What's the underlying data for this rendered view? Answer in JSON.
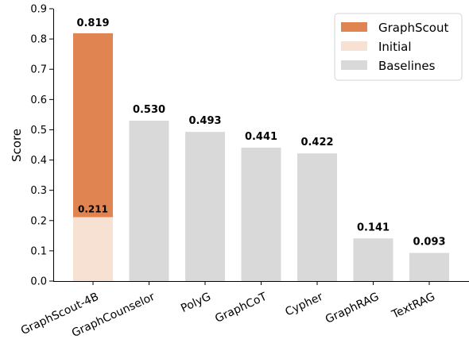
{
  "chart_data": {
    "type": "bar",
    "title": "",
    "xlabel": "",
    "ylabel": "Score",
    "ylim": [
      0,
      0.9
    ],
    "yticks": [
      "0.0",
      "0.1",
      "0.2",
      "0.3",
      "0.4",
      "0.5",
      "0.6",
      "0.7",
      "0.8",
      "0.9"
    ],
    "categories": [
      "GraphScout-4B",
      "GraphCounselor",
      "PolyG",
      "GraphCoT",
      "Cypher",
      "GraphRAG",
      "TextRAG"
    ],
    "series": [
      {
        "name": "Initial",
        "color": "#f6e1d3",
        "values": [
          0.211,
          null,
          null,
          null,
          null,
          null,
          null
        ],
        "labels": [
          "0.211",
          null,
          null,
          null,
          null,
          null,
          null
        ]
      },
      {
        "name": "GraphScout",
        "color": "#e08552",
        "values": [
          0.819,
          null,
          null,
          null,
          null,
          null,
          null
        ],
        "labels": [
          "0.819",
          null,
          null,
          null,
          null,
          null,
          null
        ]
      },
      {
        "name": "Baselines",
        "color": "#d9d9d9",
        "values": [
          null,
          0.53,
          0.493,
          0.441,
          0.422,
          0.141,
          0.093
        ],
        "labels": [
          null,
          "0.530",
          "0.493",
          "0.441",
          "0.422",
          "0.141",
          "0.093"
        ]
      }
    ],
    "legend": {
      "position": "top-right",
      "entries": [
        {
          "label": "GraphScout",
          "color": "#e08552"
        },
        {
          "label": "Initial",
          "color": "#f6e1d3"
        },
        {
          "label": "Baselines",
          "color": "#d9d9d9"
        }
      ]
    },
    "grid": false
  }
}
